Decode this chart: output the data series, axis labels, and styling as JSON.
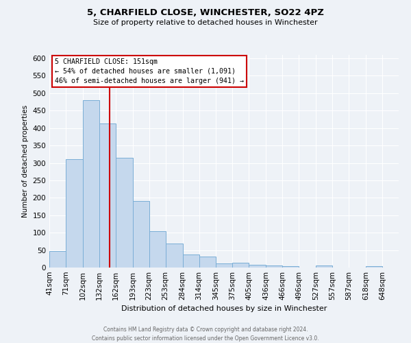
{
  "title": "5, CHARFIELD CLOSE, WINCHESTER, SO22 4PZ",
  "subtitle": "Size of property relative to detached houses in Winchester",
  "xlabel": "Distribution of detached houses by size in Winchester",
  "ylabel": "Number of detached properties",
  "bin_labels": [
    "41sqm",
    "71sqm",
    "102sqm",
    "132sqm",
    "162sqm",
    "193sqm",
    "223sqm",
    "253sqm",
    "284sqm",
    "314sqm",
    "345sqm",
    "375sqm",
    "405sqm",
    "436sqm",
    "466sqm",
    "496sqm",
    "527sqm",
    "557sqm",
    "587sqm",
    "618sqm",
    "648sqm"
  ],
  "bin_edges": [
    41,
    71,
    102,
    132,
    162,
    193,
    223,
    253,
    284,
    314,
    345,
    375,
    405,
    436,
    466,
    496,
    527,
    557,
    587,
    618,
    648
  ],
  "bar_heights": [
    47,
    311,
    480,
    414,
    315,
    191,
    104,
    69,
    38,
    31,
    12,
    13,
    8,
    5,
    3,
    0,
    5,
    0,
    0,
    3
  ],
  "bar_color": "#c5d8ed",
  "bar_edge_color": "#7aaed6",
  "marker_value": 151,
  "marker_color": "#cc0000",
  "annotation_title": "5 CHARFIELD CLOSE: 151sqm",
  "annotation_line1": "← 54% of detached houses are smaller (1,091)",
  "annotation_line2": "46% of semi-detached houses are larger (941) →",
  "annotation_box_color": "#cc0000",
  "ylim": [
    0,
    610
  ],
  "yticks": [
    0,
    50,
    100,
    150,
    200,
    250,
    300,
    350,
    400,
    450,
    500,
    550,
    600
  ],
  "footer_line1": "Contains HM Land Registry data © Crown copyright and database right 2024.",
  "footer_line2": "Contains public sector information licensed under the Open Government Licence v3.0.",
  "bg_color": "#eef2f7",
  "plot_bg_color": "#eef2f7",
  "grid_color": "#ffffff"
}
